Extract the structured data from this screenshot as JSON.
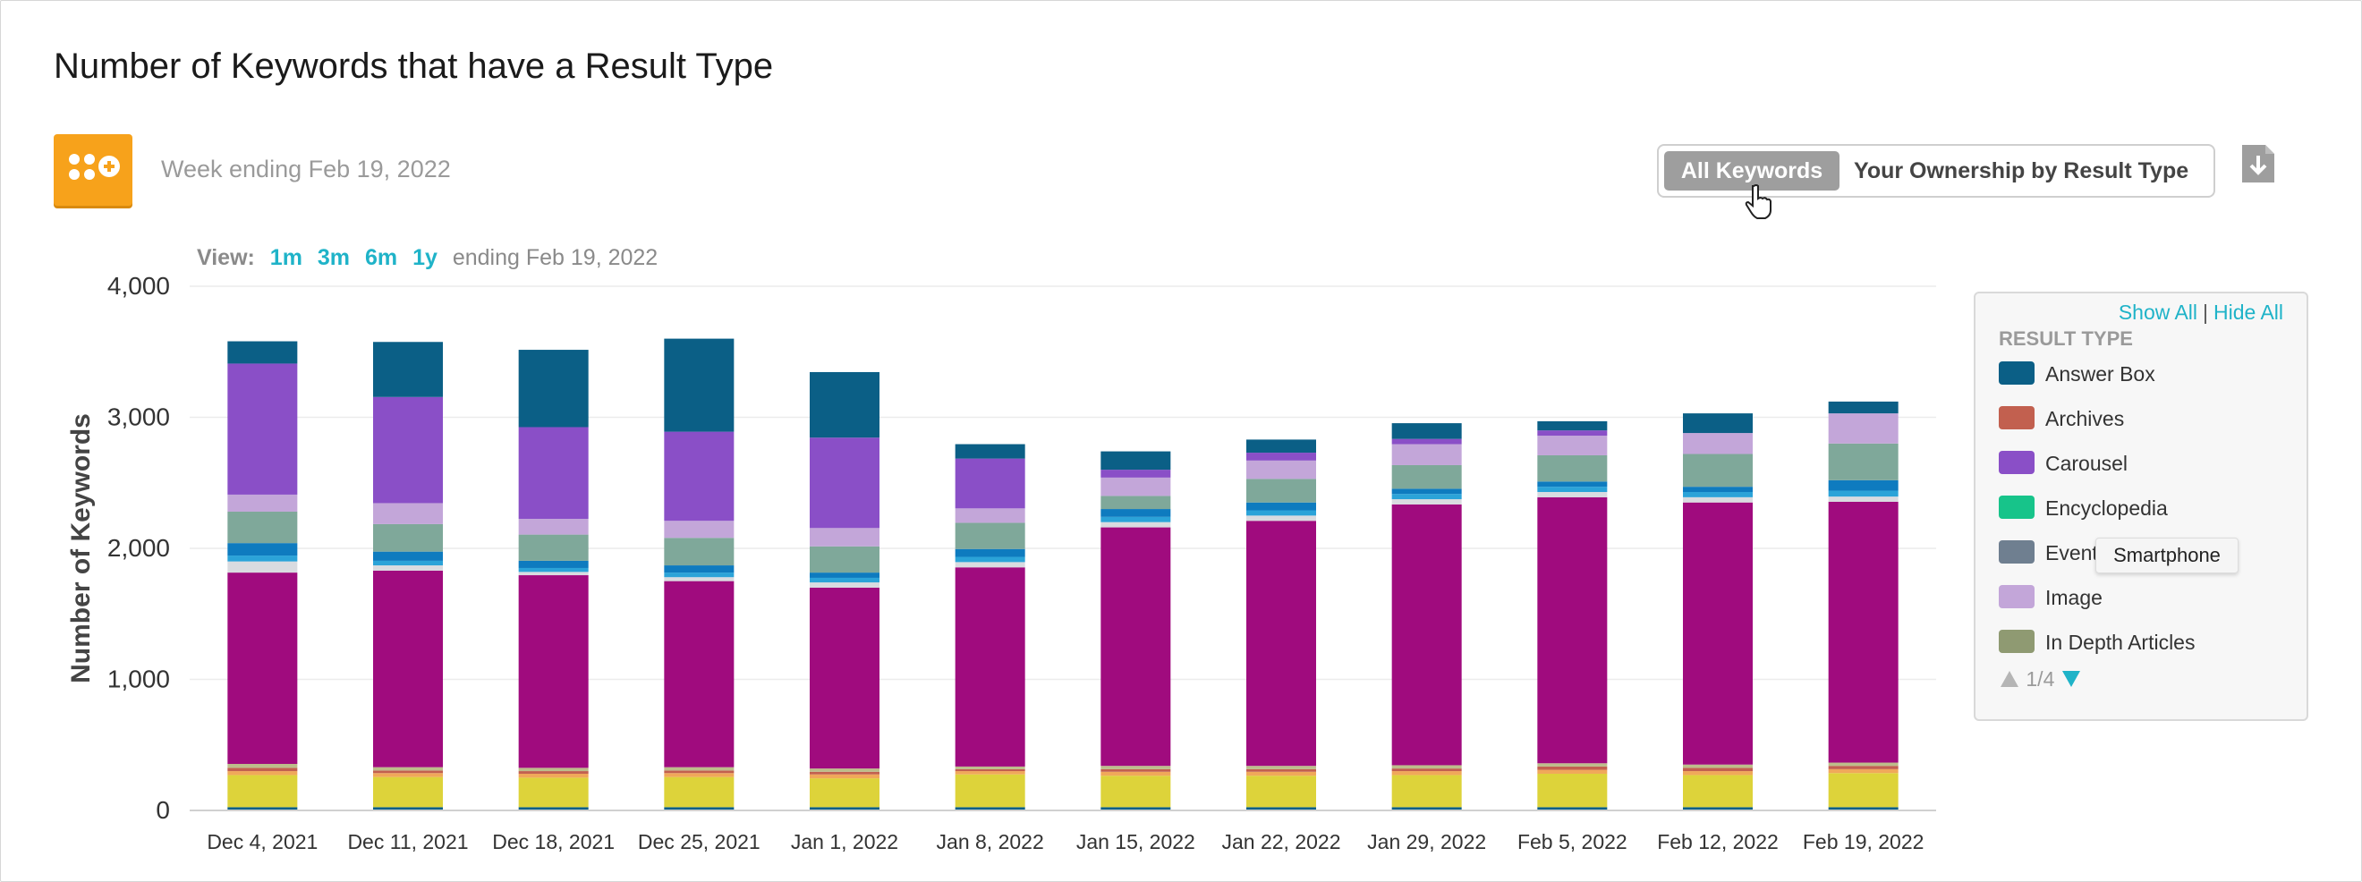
{
  "page": {
    "title": "Number of Keywords that have a Result Type",
    "week_label": "Week ending Feb 19, 2022"
  },
  "toggle": {
    "active": "All Keywords",
    "inactive": "Your Ownership by Result Type"
  },
  "view": {
    "label": "View:",
    "options": [
      "1m",
      "3m",
      "6m",
      "1y"
    ],
    "ending": "ending Feb 19, 2022"
  },
  "legend": {
    "show_all": "Show All",
    "separator": "|",
    "hide_all": "Hide All",
    "heading": "RESULT TYPE",
    "items": [
      {
        "label": "Answer Box",
        "color": "#0b5f86"
      },
      {
        "label": "Archives",
        "color": "#c2604f"
      },
      {
        "label": "Carousel",
        "color": "#8a4fc7"
      },
      {
        "label": "Encyclopedia",
        "color": "#17c48a"
      },
      {
        "label": "Events",
        "color": "#6f7f90"
      },
      {
        "label": "Image",
        "color": "#c3a6d9"
      },
      {
        "label": "In Depth Articles",
        "color": "#8f9a72"
      }
    ],
    "page": "1/4"
  },
  "tooltip": "Smartphone",
  "chart_data": {
    "type": "bar",
    "stacked": true,
    "ylabel": "Number of Keywords",
    "ylim": [
      0,
      4000
    ],
    "yticks": [
      "0",
      "1,000",
      "2,000",
      "3,000",
      "4,000"
    ],
    "grid": true,
    "legend_position": "right",
    "categories": [
      "Dec 4, 2021",
      "Dec 11, 2021",
      "Dec 18, 2021",
      "Dec 25, 2021",
      "Jan 1, 2022",
      "Jan 8, 2022",
      "Jan 15, 2022",
      "Jan 22, 2022",
      "Jan 29, 2022",
      "Feb 5, 2022",
      "Feb 12, 2022",
      "Feb 19, 2022"
    ],
    "series": [
      {
        "color": "#0b5f86",
        "values": [
          25,
          25,
          25,
          25,
          25,
          25,
          25,
          25,
          25,
          25,
          25,
          25
        ]
      },
      {
        "color": "#ddd33a",
        "values": [
          245,
          230,
          225,
          230,
          220,
          250,
          240,
          240,
          245,
          255,
          245,
          260
        ]
      },
      {
        "color": "#f0a85a",
        "values": [
          30,
          30,
          30,
          30,
          30,
          25,
          30,
          30,
          30,
          30,
          30,
          30
        ]
      },
      {
        "color": "#c2604f",
        "values": [
          25,
          20,
          20,
          20,
          20,
          15,
          20,
          20,
          20,
          25,
          25,
          25
        ]
      },
      {
        "color": "#bdbd8a",
        "values": [
          30,
          25,
          25,
          25,
          25,
          20,
          25,
          25,
          25,
          25,
          25,
          25
        ]
      },
      {
        "color": "#a00b7e",
        "values": [
          1460,
          1500,
          1470,
          1420,
          1380,
          1520,
          1820,
          1870,
          1990,
          2030,
          2000,
          1990
        ]
      },
      {
        "color": "#d9dbe0",
        "values": [
          85,
          40,
          25,
          30,
          40,
          40,
          40,
          40,
          40,
          40,
          40,
          40
        ]
      },
      {
        "color": "#2ba3d8",
        "values": [
          45,
          35,
          30,
          35,
          35,
          40,
          40,
          40,
          40,
          40,
          40,
          45
        ]
      },
      {
        "color": "#0e7bbf",
        "values": [
          95,
          70,
          55,
          55,
          40,
          60,
          60,
          60,
          40,
          40,
          40,
          80
        ]
      },
      {
        "color": "#7fa89a",
        "values": [
          240,
          210,
          200,
          210,
          200,
          200,
          100,
          180,
          180,
          200,
          250,
          280
        ]
      },
      {
        "color": "#c3a6d9",
        "values": [
          130,
          160,
          120,
          130,
          140,
          110,
          140,
          140,
          160,
          150,
          160,
          230
        ]
      },
      {
        "color": "#8a4fc7",
        "values": [
          1000,
          810,
          700,
          680,
          690,
          380,
          60,
          60,
          40,
          40,
          0,
          0
        ]
      },
      {
        "color": "#0b5f86",
        "values": [
          170,
          420,
          590,
          710,
          500,
          110,
          140,
          100,
          120,
          70,
          150,
          90
        ]
      }
    ]
  }
}
